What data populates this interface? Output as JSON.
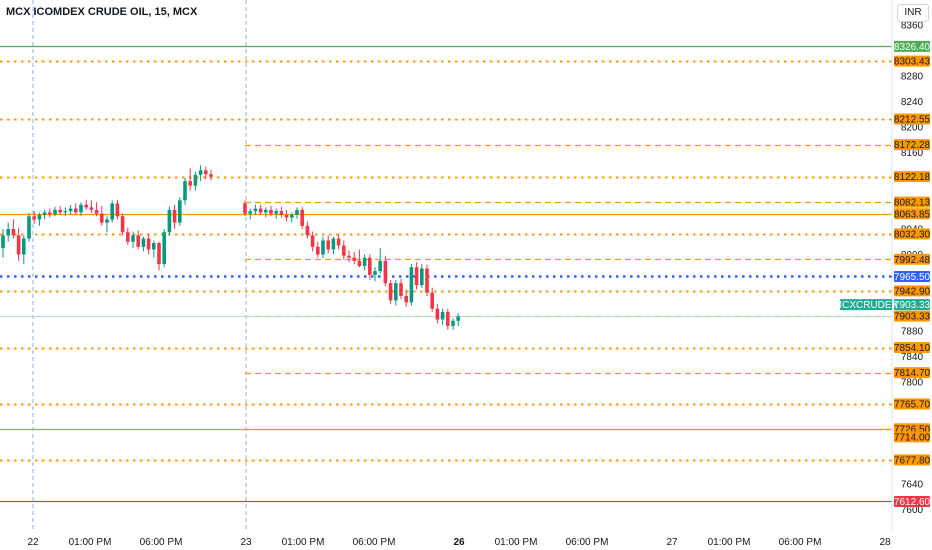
{
  "header": {
    "title": "MCX ICOMDEX CRUDE OIL, 15, MCX",
    "currency": "INR"
  },
  "chart_data": {
    "type": "candlestick",
    "ylim": [
      7590,
      8380
    ],
    "y_ticks": [
      8360,
      8280,
      8240,
      8200,
      8160,
      8040,
      8000,
      7880,
      7840,
      7800,
      7640,
      7600
    ],
    "x_ticks": [
      {
        "label": "22",
        "bold": false
      },
      {
        "label": "01:00 PM",
        "bold": false
      },
      {
        "label": "06:00 PM",
        "bold": false
      },
      {
        "label": "23",
        "bold": false
      },
      {
        "label": "01:00 PM",
        "bold": false
      },
      {
        "label": "06:00 PM",
        "bold": false
      },
      {
        "label": "26",
        "bold": true
      },
      {
        "label": "01:00 PM",
        "bold": false
      },
      {
        "label": "06:00 PM",
        "bold": false
      },
      {
        "label": "27",
        "bold": false
      },
      {
        "label": "01:00 PM",
        "bold": false
      },
      {
        "label": "06:00 PM",
        "bold": false
      },
      {
        "label": "28",
        "bold": false
      }
    ],
    "levels": [
      {
        "value": 8326.4,
        "label": "8326.40",
        "color": "#4caf50",
        "style": "solid"
      },
      {
        "value": 8303.43,
        "label": "8303.43",
        "color": "#ff9800",
        "style": "dotted"
      },
      {
        "value": 8212.55,
        "label": "8212.55",
        "color": "#ff9800",
        "style": "dotted"
      },
      {
        "value": 8172.28,
        "label": "8172.28",
        "color": "#ff9800",
        "style": "dashed"
      },
      {
        "value": 8122.18,
        "label": "8122.18",
        "color": "#ff9800",
        "style": "dotted"
      },
      {
        "value": 8082.13,
        "label": "8082.13",
        "color": "#ff9800",
        "style": "dashed"
      },
      {
        "value": 8063.85,
        "label": "8063.85",
        "color": "#ff9800",
        "style": "solid"
      },
      {
        "value": 8032.3,
        "label": "8032.30",
        "color": "#ff9800",
        "style": "dotted"
      },
      {
        "value": 7992.48,
        "label": "7992.48",
        "color": "#ff9800",
        "style": "dashed"
      },
      {
        "value": 7965.5,
        "label": "7965.50",
        "color": "#2962ff",
        "style": "dotted"
      },
      {
        "value": 7942.9,
        "label": "7942.90",
        "color": "#ff9800",
        "style": "dotted"
      },
      {
        "value": 7903.33,
        "label": "7903.33",
        "color": "#ff9800",
        "style": "dashed"
      },
      {
        "value": 7854.1,
        "label": "7854.10",
        "color": "#ff9800",
        "style": "dotted"
      },
      {
        "value": 7814.7,
        "label": "7814.70",
        "color": "#ff9800",
        "style": "dashed"
      },
      {
        "value": 7765.7,
        "label": "7765.70",
        "color": "#ff9800",
        "style": "dotted"
      },
      {
        "value": 7726.5,
        "label": "7726.50",
        "color": "#ff9800",
        "style": "dashed"
      },
      {
        "value": 7726.5,
        "label": "7726.50",
        "color": "#ff9800",
        "style": "solid"
      },
      {
        "value": 7714.0,
        "label": "7714.00",
        "color": "#ff9800",
        "style": "none"
      },
      {
        "value": 7677.8,
        "label": "7677.80",
        "color": "#ff9800",
        "style": "dotted"
      },
      {
        "value": 7612.6,
        "label": "7612.60",
        "color": "#f23645",
        "style": "solid"
      }
    ],
    "current": {
      "symbol": "MCXCRUDEX",
      "value": 7903.33,
      "label": "7903.33",
      "color": "#22ab94"
    },
    "candles": [
      [
        8010,
        8040,
        7995,
        8030
      ],
      [
        8030,
        8050,
        8020,
        8040
      ],
      [
        8040,
        8055,
        8025,
        8030
      ],
      [
        8030,
        8042,
        7990,
        8000
      ],
      [
        8000,
        8030,
        7985,
        8025
      ],
      [
        8025,
        8065,
        8020,
        8060
      ],
      [
        8060,
        8068,
        8048,
        8055
      ],
      [
        8055,
        8066,
        8045,
        8062
      ],
      [
        8062,
        8070,
        8055,
        8066
      ],
      [
        8066,
        8072,
        8058,
        8063
      ],
      [
        8063,
        8075,
        8060,
        8070
      ],
      [
        8070,
        8076,
        8062,
        8066
      ],
      [
        8066,
        8074,
        8060,
        8068
      ],
      [
        8068,
        8078,
        8062,
        8072
      ],
      [
        8072,
        8080,
        8062,
        8066
      ],
      [
        8066,
        8082,
        8060,
        8078
      ],
      [
        8078,
        8086,
        8070,
        8074
      ],
      [
        8074,
        8085,
        8065,
        8070
      ],
      [
        8070,
        8082,
        8060,
        8064
      ],
      [
        8064,
        8076,
        8045,
        8050
      ],
      [
        8050,
        8060,
        8035,
        8055
      ],
      [
        8055,
        8085,
        8050,
        8080
      ],
      [
        8080,
        8086,
        8055,
        8060
      ],
      [
        8060,
        8064,
        8030,
        8035
      ],
      [
        8035,
        8042,
        8015,
        8020
      ],
      [
        8020,
        8036,
        8010,
        8030
      ],
      [
        8030,
        8038,
        8008,
        8012
      ],
      [
        8012,
        8028,
        8005,
        8025
      ],
      [
        8025,
        8032,
        8000,
        8008
      ],
      [
        8008,
        8022,
        7995,
        8018
      ],
      [
        8018,
        8020,
        7975,
        7985
      ],
      [
        7985,
        8040,
        7980,
        8035
      ],
      [
        8035,
        8075,
        8030,
        8070
      ],
      [
        8070,
        8078,
        8040,
        8050
      ],
      [
        8050,
        8090,
        8045,
        8085
      ],
      [
        8085,
        8120,
        8078,
        8115
      ],
      [
        8115,
        8135,
        8100,
        8108
      ],
      [
        8108,
        8130,
        8100,
        8125
      ],
      [
        8125,
        8140,
        8115,
        8132
      ],
      [
        8132,
        8138,
        8118,
        8126
      ],
      [
        8126,
        8133,
        8116,
        8122
      ],
      [
        8080,
        8085,
        8060,
        8064
      ],
      [
        8064,
        8072,
        8055,
        8068
      ],
      [
        8068,
        8078,
        8062,
        8072
      ],
      [
        8072,
        8078,
        8062,
        8066
      ],
      [
        8066,
        8074,
        8058,
        8070
      ],
      [
        8070,
        8076,
        8060,
        8064
      ],
      [
        8064,
        8072,
        8056,
        8068
      ],
      [
        8068,
        8075,
        8058,
        8062
      ],
      [
        8062,
        8070,
        8052,
        8058
      ],
      [
        8058,
        8066,
        8050,
        8062
      ],
      [
        8062,
        8074,
        8056,
        8070
      ],
      [
        8070,
        8075,
        8040,
        8045
      ],
      [
        8045,
        8052,
        8025,
        8030
      ],
      [
        8030,
        8036,
        8005,
        8012
      ],
      [
        8012,
        8020,
        7995,
        8000
      ],
      [
        8000,
        8028,
        7994,
        8022
      ],
      [
        8022,
        8030,
        8002,
        8008
      ],
      [
        8008,
        8028,
        8000,
        8025
      ],
      [
        8025,
        8032,
        8008,
        8014
      ],
      [
        8014,
        8022,
        7992,
        7998
      ],
      [
        7998,
        8006,
        7988,
        7995
      ],
      [
        7995,
        8004,
        7985,
        7990
      ],
      [
        7990,
        8008,
        7980,
        7982
      ],
      [
        7982,
        8000,
        7975,
        7995
      ],
      [
        7995,
        8000,
        7960,
        7968
      ],
      [
        7968,
        7980,
        7958,
        7974
      ],
      [
        7974,
        8010,
        7970,
        7990
      ],
      [
        7990,
        7998,
        7950,
        7955
      ],
      [
        7955,
        7960,
        7922,
        7928
      ],
      [
        7928,
        7960,
        7920,
        7955
      ],
      [
        7955,
        7962,
        7930,
        7935
      ],
      [
        7935,
        7945,
        7918,
        7925
      ],
      [
        7925,
        7985,
        7920,
        7980
      ],
      [
        7980,
        7988,
        7945,
        7952
      ],
      [
        7952,
        7985,
        7948,
        7978
      ],
      [
        7978,
        7984,
        7935,
        7940
      ],
      [
        7940,
        7948,
        7910,
        7915
      ],
      [
        7915,
        7922,
        7892,
        7898
      ],
      [
        7898,
        7915,
        7890,
        7910
      ],
      [
        7910,
        7915,
        7882,
        7888
      ],
      [
        7888,
        7900,
        7882,
        7896
      ],
      [
        7896,
        7908,
        7888,
        7903
      ]
    ]
  }
}
